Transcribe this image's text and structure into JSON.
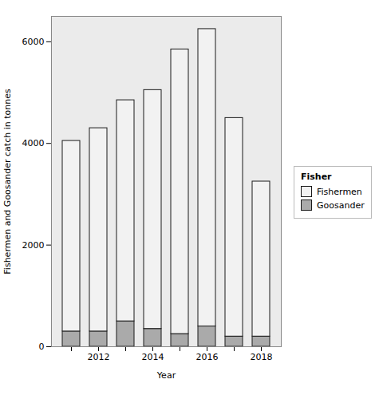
{
  "chart_data": {
    "type": "bar",
    "stacked": true,
    "xlabel": "Year",
    "ylabel": "Fishermen and Goosander catch in tonnes",
    "categories": [
      null,
      "2012",
      null,
      "2014",
      null,
      "2016",
      null,
      "2018"
    ],
    "series": [
      {
        "name": "Goosander",
        "color": "#aaaaaa",
        "values": [
          300,
          300,
          500,
          350,
          250,
          400,
          200,
          200
        ]
      },
      {
        "name": "Fishermen",
        "color": "#f2f2f2",
        "values": [
          3750,
          4000,
          4350,
          4700,
          5600,
          5850,
          4300,
          3050
        ]
      }
    ],
    "ylim": [
      0,
      6500
    ],
    "yticks": [
      0,
      2000,
      4000,
      6000
    ],
    "grid": false,
    "legend": "right",
    "legend_title": "Fisher"
  }
}
